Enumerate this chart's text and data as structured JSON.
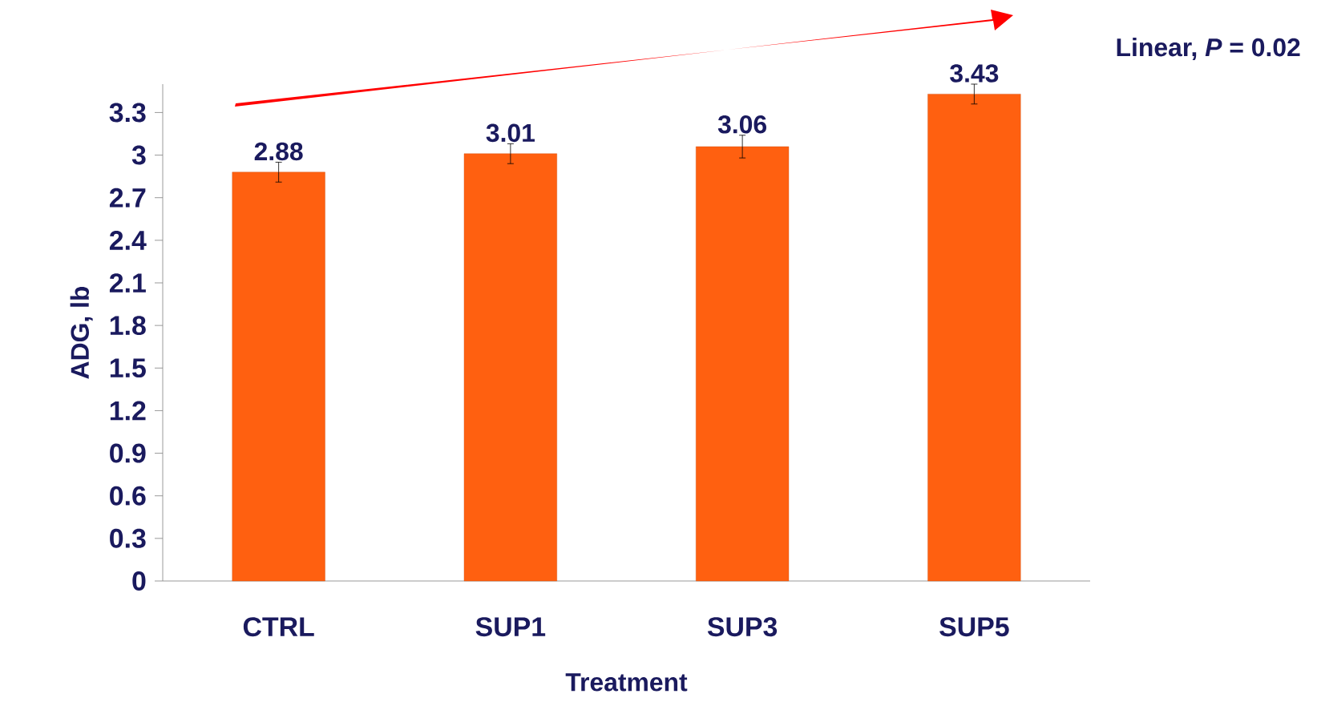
{
  "chart_data": {
    "type": "bar",
    "xlabel": "Treatment",
    "ylabel": "ADG, lb",
    "categories": [
      "CTRL",
      "SUP1",
      "SUP3",
      "SUP5"
    ],
    "values": [
      2.88,
      3.01,
      3.06,
      3.43
    ],
    "errors": [
      0.07,
      0.07,
      0.08,
      0.07
    ],
    "color": "#ff6010",
    "data_labels": true,
    "ylim": [
      0,
      3.5
    ],
    "yticks": [
      0,
      0.3,
      0.6,
      0.9,
      1.2,
      1.5,
      1.8,
      2.1,
      2.4,
      2.7,
      3,
      3.3
    ],
    "annotations": [
      "Linear, *P* = 0.02"
    ],
    "grid": false
  }
}
